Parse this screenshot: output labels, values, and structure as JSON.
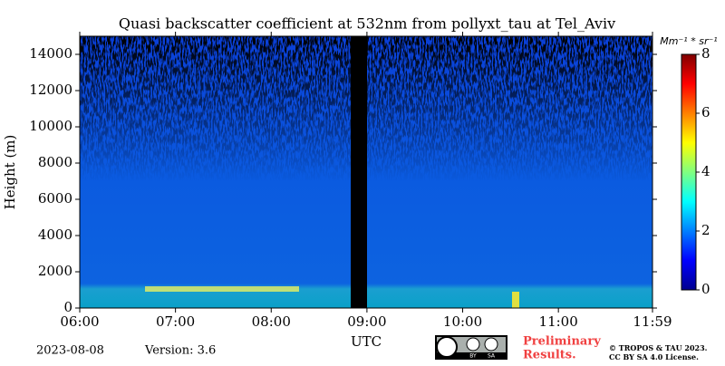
{
  "chart_data": {
    "type": "heatmap",
    "title": "Quasi backscatter coefficient at 532nm from pollyxt_tau at Tel_Aviv",
    "x_label": "UTC",
    "y_label": "Height (m)",
    "xlim": [
      6,
      11.983
    ],
    "xticks": [
      {
        "value": 6,
        "label": "06:00"
      },
      {
        "value": 7,
        "label": "07:00"
      },
      {
        "value": 8,
        "label": "08:00"
      },
      {
        "value": 9,
        "label": "09:00"
      },
      {
        "value": 10,
        "label": "10:00"
      },
      {
        "value": 11,
        "label": "11:00"
      },
      {
        "value": 11.983,
        "label": "11:59"
      }
    ],
    "ylim": [
      0,
      15000
    ],
    "yticks": [
      0,
      2000,
      4000,
      6000,
      8000,
      10000,
      12000,
      14000
    ],
    "colorbar": {
      "label": "Mm⁻¹ * sr⁻¹",
      "lim": [
        0,
        8
      ],
      "ticks": [
        0,
        2,
        4,
        6,
        8
      ],
      "colormap": "jet"
    }
  },
  "footer": {
    "date": "2023-08-08",
    "version": "Version: 3.6",
    "license_badge": [
      "BY",
      "SA"
    ],
    "notice": [
      "Preliminary",
      "Results."
    ],
    "copyright": [
      "© TROPOS & TAU 2023.",
      "CC BY SA 4.0 License."
    ]
  }
}
